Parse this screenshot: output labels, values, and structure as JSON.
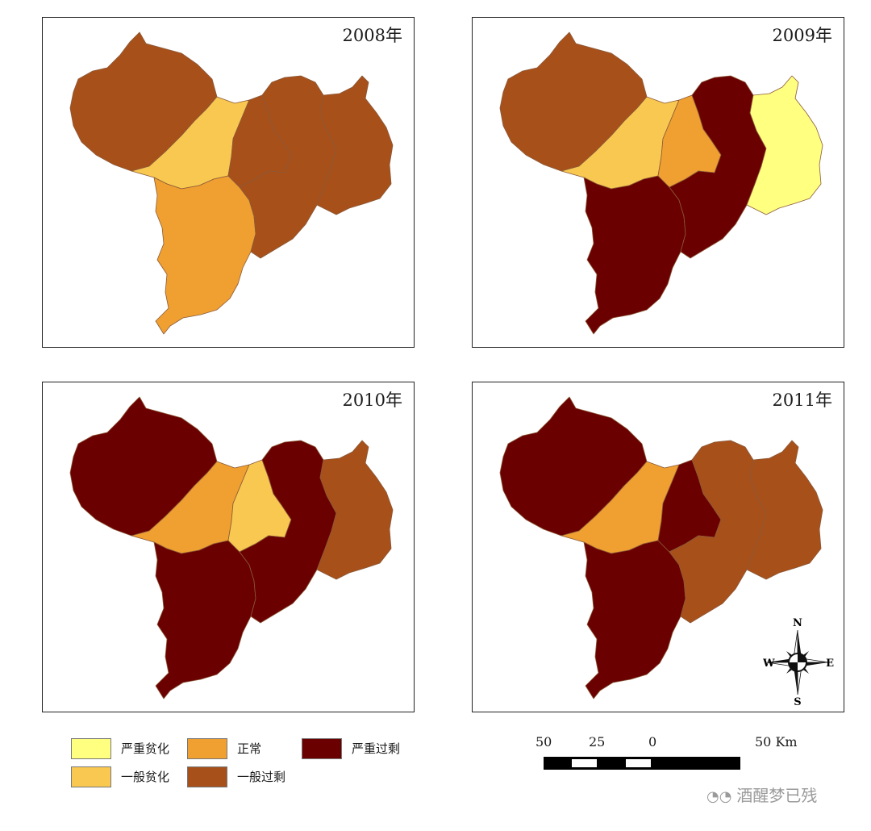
{
  "panels": [
    {
      "year": "2008年",
      "regions": {
        "A": "一般过剩",
        "B": "一般贫化",
        "C": "正常",
        "D": "一般过剩",
        "E": "一般过剩",
        "F": "一般过剩"
      }
    },
    {
      "year": "2009年",
      "regions": {
        "A": "一般过剩",
        "B": "一般贫化",
        "C": "严重过剩",
        "D": "正常",
        "E": "严重过剩",
        "F": "严重贫化"
      }
    },
    {
      "year": "2010年",
      "regions": {
        "A": "严重过剩",
        "B": "正常",
        "C": "严重过剩",
        "D": "一般贫化",
        "E": "严重过剩",
        "F": "一般过剩"
      }
    },
    {
      "year": "2011年",
      "regions": {
        "A": "严重过剩",
        "B": "正常",
        "C": "严重过剩",
        "D": "严重过剩",
        "E": "一般过剩",
        "F": "一般过剩"
      }
    }
  ],
  "legend": [
    {
      "label": "严重贫化",
      "color": "#FFFF80"
    },
    {
      "label": "正常",
      "color": "#F0A030"
    },
    {
      "label": "严重过剩",
      "color": "#6B0000"
    },
    {
      "label": "一般贫化",
      "color": "#F8C850"
    },
    {
      "label": "一般过剩",
      "color": "#A8501A"
    }
  ],
  "scale_bar": {
    "labels": [
      "50",
      "25",
      "0",
      "50 Km"
    ]
  },
  "compass": {
    "n": "N",
    "s": "S",
    "e": "E",
    "w": "W"
  },
  "watermark": "酒醒梦已残"
}
